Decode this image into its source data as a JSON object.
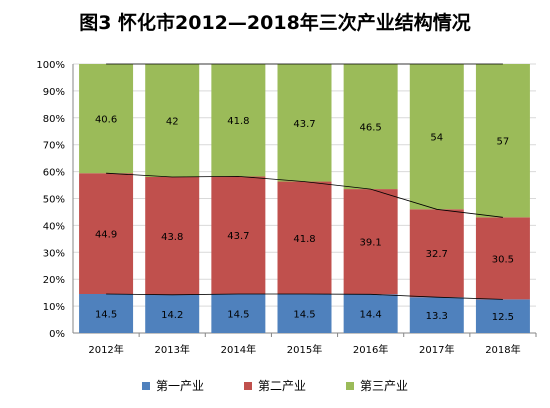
{
  "chart_data": {
    "type": "bar",
    "stacked": true,
    "percent": true,
    "title": "图3  怀化市2012—2018年三次产业结构情况",
    "categories": [
      "2012年",
      "2013年",
      "2014年",
      "2015年",
      "2016年",
      "2017年",
      "2018年"
    ],
    "series": [
      {
        "name": "第一产业",
        "values": [
          14.5,
          14.2,
          14.5,
          14.5,
          14.4,
          13.3,
          12.5
        ],
        "color": "#4f81bd"
      },
      {
        "name": "第二产业",
        "values": [
          44.9,
          43.8,
          43.7,
          41.8,
          39.1,
          32.7,
          30.5
        ],
        "color": "#c0504d"
      },
      {
        "name": "第三产业",
        "values": [
          40.6,
          42,
          41.8,
          43.7,
          46.5,
          54,
          57
        ],
        "color": "#9bbb59"
      }
    ],
    "yticks": [
      "0%",
      "10%",
      "20%",
      "30%",
      "40%",
      "50%",
      "60%",
      "70%",
      "80%",
      "90%",
      "100%"
    ],
    "ylim": [
      0,
      100
    ],
    "series_lines": true,
    "grid": true,
    "legend": "bottom"
  }
}
